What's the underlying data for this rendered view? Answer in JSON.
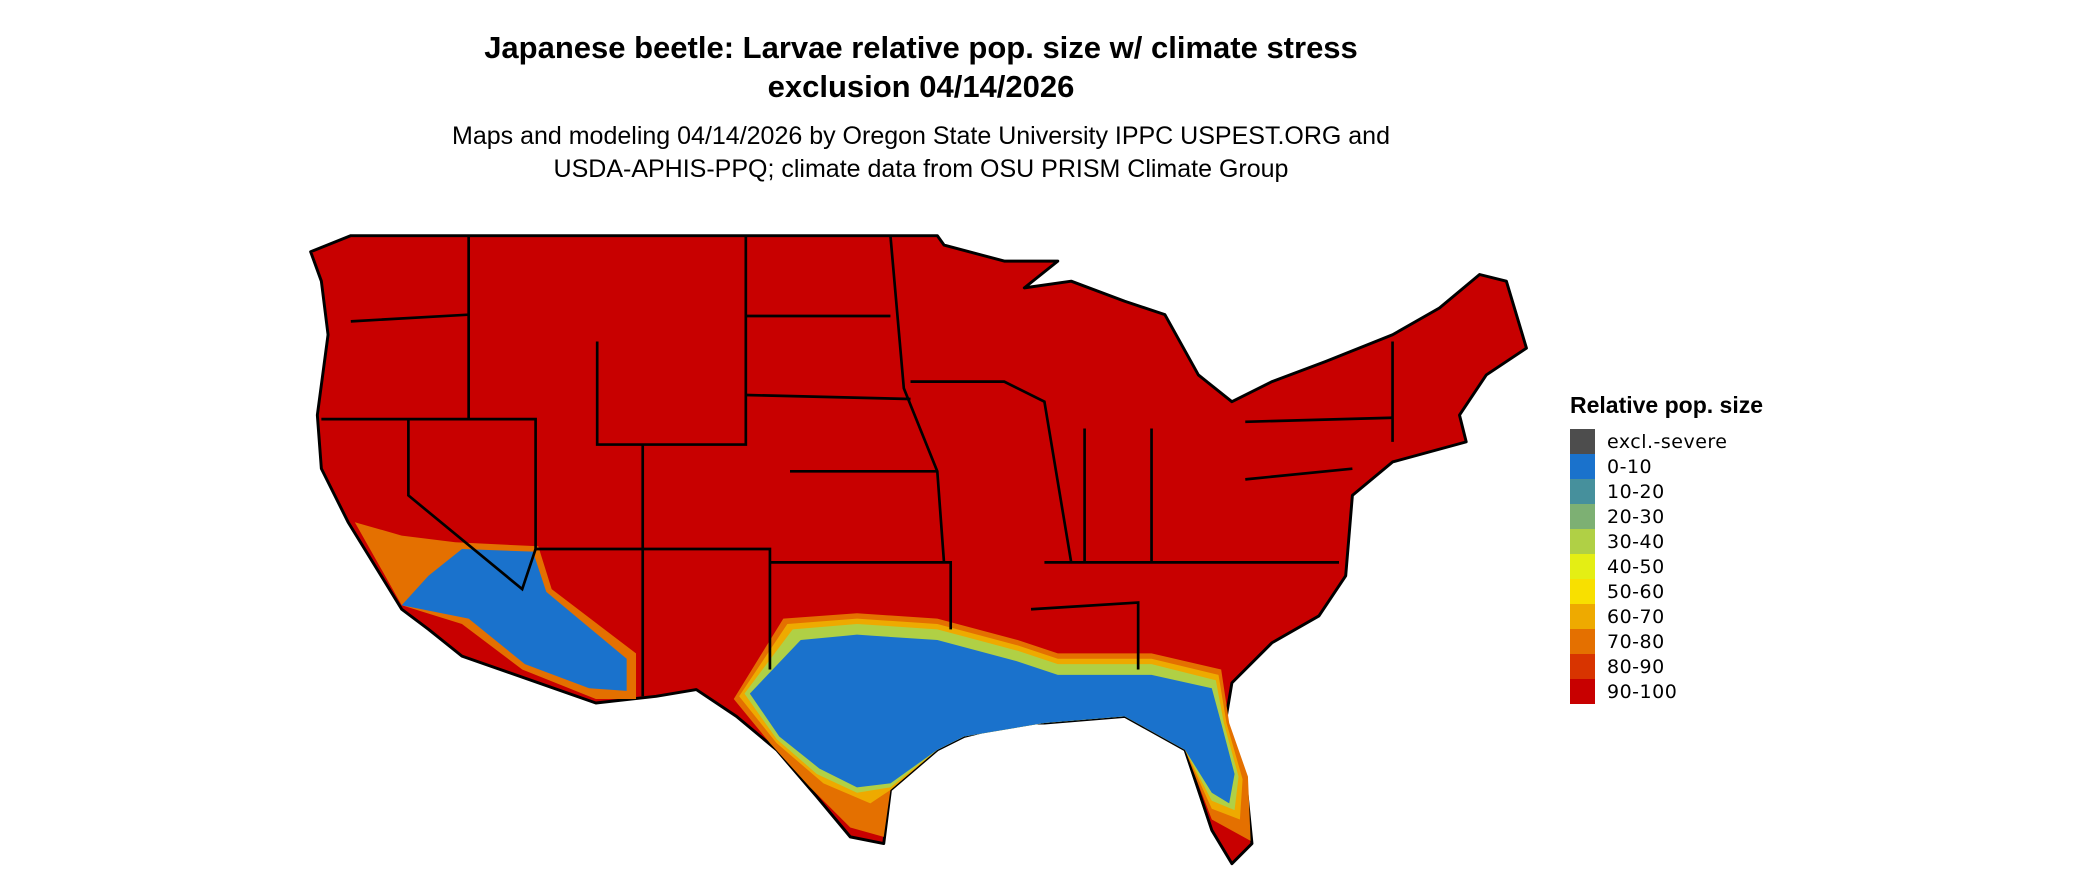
{
  "title_line1": "Japanese beetle: Larvae relative pop. size w/ climate stress",
  "title_line2": "exclusion 04/14/2026",
  "subtitle_line1": "Maps and modeling 04/14/2026 by Oregon State University IPPC USPEST.ORG and",
  "subtitle_line2": "USDA-APHIS-PPQ; climate data from OSU PRISM Climate Group",
  "legend": {
    "title": "Relative pop. size",
    "items": [
      {
        "label": "excl.-severe",
        "color": "#4d4d4d"
      },
      {
        "label": "0-10",
        "color": "#1a72cc"
      },
      {
        "label": "10-20",
        "color": "#46909c"
      },
      {
        "label": "20-30",
        "color": "#7db073"
      },
      {
        "label": "30-40",
        "color": "#b0d045"
      },
      {
        "label": "40-50",
        "color": "#e4ee14"
      },
      {
        "label": "50-60",
        "color": "#f8e000"
      },
      {
        "label": "60-70",
        "color": "#eeaa00"
      },
      {
        "label": "70-80",
        "color": "#e47000"
      },
      {
        "label": "80-90",
        "color": "#d83400"
      },
      {
        "label": "90-100",
        "color": "#c80000"
      }
    ]
  }
}
